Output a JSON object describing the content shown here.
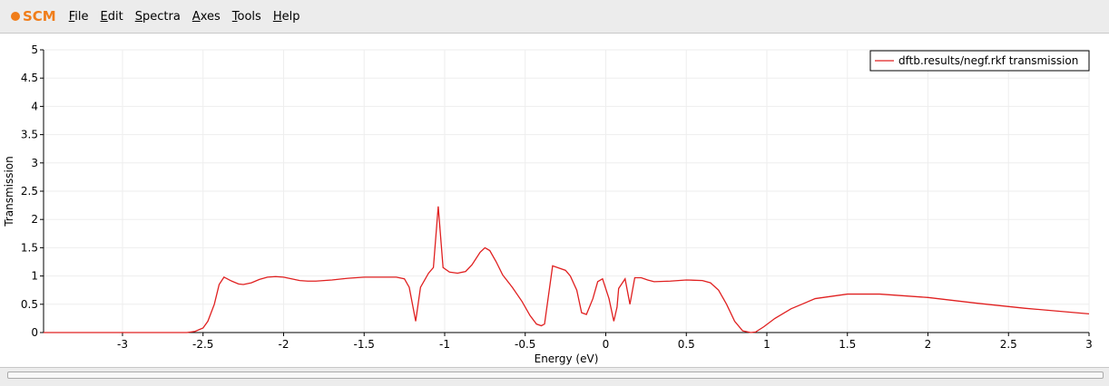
{
  "app": {
    "logo": "SCM",
    "menu": [
      "File",
      "Edit",
      "Spectra",
      "Axes",
      "Tools",
      "Help"
    ]
  },
  "chart_data": {
    "type": "line",
    "x_label": "Energy (eV)",
    "y_label": "Transmission",
    "xlim": [
      -3.49,
      3
    ],
    "ylim": [
      0,
      5
    ],
    "xticks": [
      -3,
      -2.5,
      -2,
      -1.5,
      -1,
      -0.5,
      0,
      0.5,
      1,
      1.5,
      2,
      2.5,
      3
    ],
    "yticks": [
      0,
      0.5,
      1,
      1.5,
      2,
      2.5,
      3,
      3.5,
      4,
      4.5,
      5
    ],
    "grid": true,
    "legend": "upper right",
    "series": [
      {
        "name": "dftb.results/negf.rkf transmission",
        "color": "#e02020",
        "x": [
          -3.49,
          -2.6,
          -2.55,
          -2.5,
          -2.47,
          -2.43,
          -2.4,
          -2.37,
          -2.33,
          -2.28,
          -2.25,
          -2.2,
          -2.15,
          -2.1,
          -2.05,
          -2.0,
          -1.95,
          -1.9,
          -1.85,
          -1.8,
          -1.7,
          -1.6,
          -1.5,
          -1.4,
          -1.3,
          -1.25,
          -1.22,
          -1.2,
          -1.18,
          -1.15,
          -1.1,
          -1.07,
          -1.04,
          -1.01,
          -0.97,
          -0.92,
          -0.87,
          -0.83,
          -0.78,
          -0.75,
          -0.72,
          -0.68,
          -0.64,
          -0.58,
          -0.52,
          -0.47,
          -0.43,
          -0.4,
          -0.38,
          -0.33,
          -0.3,
          -0.25,
          -0.22,
          -0.18,
          -0.15,
          -0.12,
          -0.08,
          -0.05,
          -0.02,
          0.02,
          0.05,
          0.07,
          0.08,
          0.12,
          0.15,
          0.18,
          0.22,
          0.26,
          0.3,
          0.4,
          0.5,
          0.6,
          0.65,
          0.7,
          0.75,
          0.8,
          0.85,
          0.9,
          0.93,
          0.98,
          1.05,
          1.15,
          1.3,
          1.5,
          1.7,
          2.0,
          2.3,
          2.6,
          3.0
        ],
        "values": [
          0,
          0,
          0.02,
          0.08,
          0.2,
          0.5,
          0.85,
          0.98,
          0.92,
          0.86,
          0.85,
          0.88,
          0.94,
          0.98,
          0.99,
          0.98,
          0.95,
          0.92,
          0.91,
          0.91,
          0.93,
          0.96,
          0.98,
          0.98,
          0.98,
          0.95,
          0.8,
          0.5,
          0.2,
          0.8,
          1.05,
          1.15,
          2.23,
          1.15,
          1.07,
          1.05,
          1.08,
          1.2,
          1.42,
          1.5,
          1.45,
          1.25,
          1.02,
          0.8,
          0.55,
          0.3,
          0.15,
          0.12,
          0.15,
          1.18,
          1.15,
          1.1,
          1.0,
          0.75,
          0.35,
          0.32,
          0.6,
          0.9,
          0.95,
          0.6,
          0.2,
          0.45,
          0.78,
          0.95,
          0.5,
          0.97,
          0.97,
          0.93,
          0.9,
          0.91,
          0.93,
          0.92,
          0.88,
          0.75,
          0.5,
          0.2,
          0.03,
          0,
          0.01,
          0.1,
          0.25,
          0.42,
          0.6,
          0.68,
          0.68,
          0.62,
          0.52,
          0.43,
          0.33
        ]
      }
    ]
  }
}
